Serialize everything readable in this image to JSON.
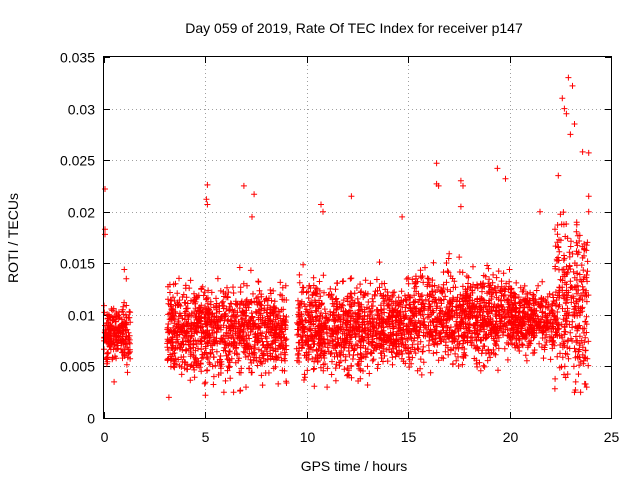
{
  "chart_data": {
    "type": "scatter",
    "title": "Day 059 of 2019, Rate Of TEC Index for receiver p147",
    "xlabel": "GPS time / hours",
    "ylabel": "ROTI / TECUs",
    "xlim": [
      0,
      25
    ],
    "ylim": [
      0,
      0.035
    ],
    "xticks": [
      0,
      5,
      10,
      15,
      20,
      25
    ],
    "xtick_labels": [
      "0",
      "5",
      "10",
      "15",
      "20",
      "25"
    ],
    "yticks": [
      0,
      0.005,
      0.01,
      0.015,
      0.02,
      0.025,
      0.03,
      0.035
    ],
    "ytick_labels": [
      "0",
      "0.005",
      "0.01",
      "0.015",
      "0.02",
      "0.025",
      "0.03",
      "0.035"
    ],
    "grid": true,
    "marker": "+",
    "marker_color": "#ff0000",
    "series": [
      {
        "name": "ROTI",
        "envelope": [
          {
            "x_start": 0.0,
            "x_end": 1.3,
            "y_low": 0.004,
            "y_high": 0.012,
            "y_center": 0.008
          },
          {
            "x_start": 3.1,
            "x_end": 9.0,
            "y_low": 0.003,
            "y_high": 0.016,
            "y_center": 0.0085
          },
          {
            "x_start": 9.5,
            "x_end": 15.0,
            "y_low": 0.0035,
            "y_high": 0.0165,
            "y_center": 0.0088
          },
          {
            "x_start": 15.0,
            "x_end": 20.0,
            "y_low": 0.0045,
            "y_high": 0.018,
            "y_center": 0.0098
          },
          {
            "x_start": 20.0,
            "x_end": 22.2,
            "y_low": 0.006,
            "y_high": 0.016,
            "y_center": 0.0095
          },
          {
            "x_start": 22.2,
            "x_end": 23.9,
            "y_low": 0.003,
            "y_high": 0.026,
            "y_center": 0.0115
          }
        ],
        "highlights": [
          {
            "x": 0.05,
            "y": 0.0222
          },
          {
            "x": 0.05,
            "y": 0.0183
          },
          {
            "x": 0.05,
            "y": 0.0178
          },
          {
            "x": 5.1,
            "y": 0.0226
          },
          {
            "x": 5.05,
            "y": 0.0212
          },
          {
            "x": 5.1,
            "y": 0.0207
          },
          {
            "x": 6.9,
            "y": 0.0225
          },
          {
            "x": 7.4,
            "y": 0.0217
          },
          {
            "x": 7.3,
            "y": 0.0195
          },
          {
            "x": 10.7,
            "y": 0.0207
          },
          {
            "x": 10.8,
            "y": 0.02
          },
          {
            "x": 12.2,
            "y": 0.0215
          },
          {
            "x": 14.7,
            "y": 0.0195
          },
          {
            "x": 16.4,
            "y": 0.0247
          },
          {
            "x": 16.4,
            "y": 0.0227
          },
          {
            "x": 16.5,
            "y": 0.0225
          },
          {
            "x": 17.6,
            "y": 0.023
          },
          {
            "x": 17.7,
            "y": 0.0225
          },
          {
            "x": 17.6,
            "y": 0.0205
          },
          {
            "x": 19.4,
            "y": 0.0242
          },
          {
            "x": 19.8,
            "y": 0.0232
          },
          {
            "x": 21.5,
            "y": 0.02
          },
          {
            "x": 22.4,
            "y": 0.0235
          },
          {
            "x": 22.9,
            "y": 0.033
          },
          {
            "x": 23.1,
            "y": 0.0322
          },
          {
            "x": 22.6,
            "y": 0.031
          },
          {
            "x": 22.7,
            "y": 0.03
          },
          {
            "x": 22.8,
            "y": 0.0295
          },
          {
            "x": 23.2,
            "y": 0.0285
          },
          {
            "x": 23.0,
            "y": 0.0275
          },
          {
            "x": 23.6,
            "y": 0.0258
          },
          {
            "x": 23.9,
            "y": 0.0257
          },
          {
            "x": 23.9,
            "y": 0.0215
          },
          {
            "x": 23.9,
            "y": 0.02
          },
          {
            "x": 1.0,
            "y": 0.0144
          },
          {
            "x": 1.1,
            "y": 0.0135
          },
          {
            "x": 0.5,
            "y": 0.0035
          },
          {
            "x": 3.2,
            "y": 0.002
          },
          {
            "x": 5.0,
            "y": 0.0022
          },
          {
            "x": 7.0,
            "y": 0.003
          },
          {
            "x": 11.0,
            "y": 0.003
          },
          {
            "x": 13.0,
            "y": 0.0032
          },
          {
            "x": 23.5,
            "y": 0.0025
          },
          {
            "x": 23.8,
            "y": 0.003
          }
        ]
      }
    ]
  }
}
